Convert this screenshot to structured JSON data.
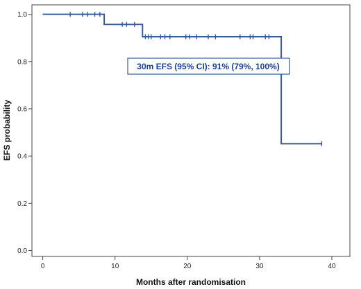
{
  "chart_data": {
    "type": "line",
    "subtype": "kaplan-meier step curve",
    "title": "",
    "xlabel": "Months after randomisation",
    "ylabel": "EFS probability",
    "xlim": [
      -1.5,
      42.5
    ],
    "ylim": [
      -0.025,
      1.04
    ],
    "x_ticks": [
      0,
      10,
      20,
      30,
      40
    ],
    "y_ticks": [
      0.0,
      0.2,
      0.4,
      0.6,
      0.8,
      1.0
    ],
    "x_tick_labels": [
      "0",
      "10",
      "20",
      "30",
      "40"
    ],
    "y_tick_labels": [
      "0.0",
      "0.2",
      "0.4",
      "0.6",
      "0.8",
      "1.0"
    ],
    "grid": false,
    "series": [
      {
        "color": "#3b5998",
        "steps": [
          {
            "x": 0,
            "y": 1.0
          },
          {
            "x": 8.5,
            "y": 0.957
          },
          {
            "x": 13.8,
            "y": 0.905
          },
          {
            "x": 33.0,
            "y": 0.452
          },
          {
            "x": 38.6,
            "y": 0.452
          }
        ],
        "censored": [
          {
            "x": 3.8,
            "y": 1.0
          },
          {
            "x": 5.5,
            "y": 1.0
          },
          {
            "x": 6.2,
            "y": 1.0
          },
          {
            "x": 7.2,
            "y": 1.0
          },
          {
            "x": 7.9,
            "y": 1.0
          },
          {
            "x": 11.0,
            "y": 0.957
          },
          {
            "x": 11.6,
            "y": 0.957
          },
          {
            "x": 12.7,
            "y": 0.957
          },
          {
            "x": 14.2,
            "y": 0.905
          },
          {
            "x": 14.6,
            "y": 0.905
          },
          {
            "x": 15.0,
            "y": 0.905
          },
          {
            "x": 16.3,
            "y": 0.905
          },
          {
            "x": 16.9,
            "y": 0.905
          },
          {
            "x": 17.6,
            "y": 0.905
          },
          {
            "x": 19.8,
            "y": 0.905
          },
          {
            "x": 20.3,
            "y": 0.905
          },
          {
            "x": 21.3,
            "y": 0.905
          },
          {
            "x": 22.9,
            "y": 0.905
          },
          {
            "x": 23.9,
            "y": 0.905
          },
          {
            "x": 27.3,
            "y": 0.905
          },
          {
            "x": 28.7,
            "y": 0.905
          },
          {
            "x": 29.1,
            "y": 0.905
          },
          {
            "x": 30.8,
            "y": 0.905
          },
          {
            "x": 31.3,
            "y": 0.905
          },
          {
            "x": 38.6,
            "y": 0.452
          }
        ]
      }
    ],
    "annotation": {
      "text": "30m EFS (95% CI): 91% (79%, 100%)",
      "position": "upper-center",
      "border_color": "#3b5998",
      "text_color": "#1f3f96"
    }
  }
}
